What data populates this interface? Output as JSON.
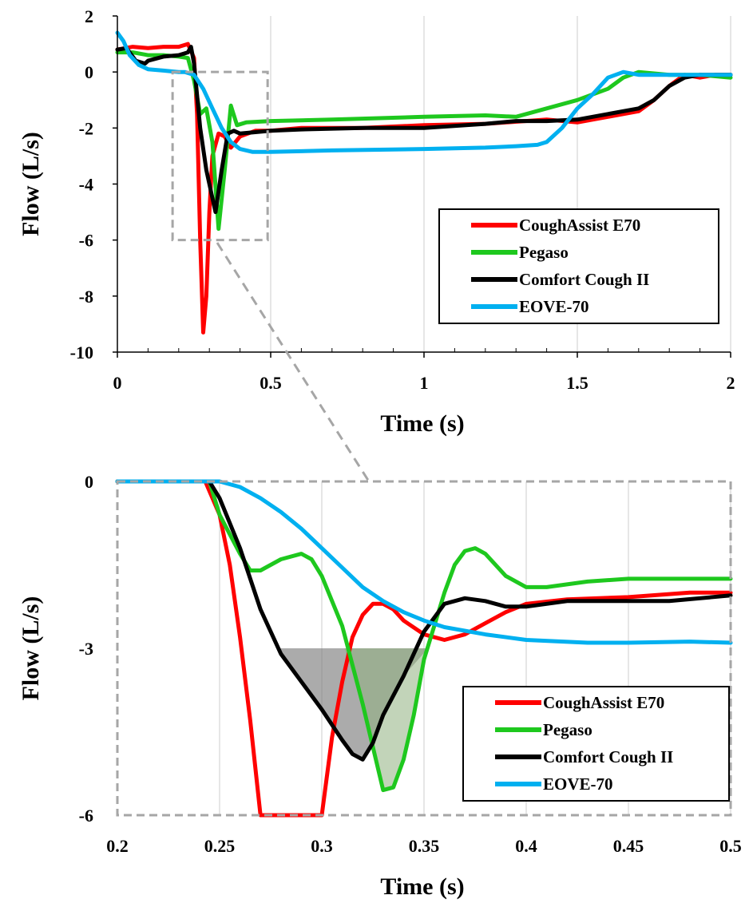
{
  "chart_data": [
    {
      "type": "line",
      "xlabel": "Time (s)",
      "ylabel": "Flow (L/s)",
      "xlim": [
        0,
        2
      ],
      "ylim": [
        -10,
        2
      ],
      "x_ticks": [
        "0",
        "0.5",
        "1",
        "1.5",
        "2"
      ],
      "y_ticks": [
        "2",
        "0",
        "-2",
        "-4",
        "-6",
        "-8",
        "-10"
      ],
      "grid": "vertical",
      "legend_position": "lower-right",
      "series": [
        {
          "name": "CoughAssist E70",
          "color": "#ff0000",
          "points": [
            [
              0,
              0.8
            ],
            [
              0.05,
              0.9
            ],
            [
              0.1,
              0.85
            ],
            [
              0.15,
              0.9
            ],
            [
              0.2,
              0.9
            ],
            [
              0.23,
              1.0
            ],
            [
              0.25,
              0.5
            ],
            [
              0.26,
              -1.5
            ],
            [
              0.27,
              -6
            ],
            [
              0.28,
              -9.3
            ],
            [
              0.29,
              -8
            ],
            [
              0.3,
              -5
            ],
            [
              0.31,
              -3.0
            ],
            [
              0.33,
              -2.2
            ],
            [
              0.35,
              -2.3
            ],
            [
              0.37,
              -2.7
            ],
            [
              0.4,
              -2.3
            ],
            [
              0.45,
              -2.1
            ],
            [
              0.5,
              -2.1
            ],
            [
              0.6,
              -2.0
            ],
            [
              0.8,
              -2.0
            ],
            [
              1.0,
              -1.9
            ],
            [
              1.2,
              -1.85
            ],
            [
              1.4,
              -1.7
            ],
            [
              1.5,
              -1.8
            ],
            [
              1.6,
              -1.6
            ],
            [
              1.7,
              -1.4
            ],
            [
              1.75,
              -1.0
            ],
            [
              1.8,
              -0.5
            ],
            [
              1.85,
              -0.1
            ],
            [
              1.9,
              -0.2
            ],
            [
              1.95,
              -0.1
            ],
            [
              2.0,
              -0.1
            ]
          ]
        },
        {
          "name": "Pegaso",
          "color": "#1ec81e",
          "points": [
            [
              0,
              0.7
            ],
            [
              0.05,
              0.7
            ],
            [
              0.1,
              0.6
            ],
            [
              0.15,
              0.6
            ],
            [
              0.2,
              0.55
            ],
            [
              0.23,
              0.5
            ],
            [
              0.25,
              -0.3
            ],
            [
              0.27,
              -1.5
            ],
            [
              0.29,
              -1.3
            ],
            [
              0.31,
              -2.5
            ],
            [
              0.33,
              -5.6
            ],
            [
              0.35,
              -3.5
            ],
            [
              0.37,
              -1.2
            ],
            [
              0.39,
              -1.9
            ],
            [
              0.42,
              -1.8
            ],
            [
              0.5,
              -1.75
            ],
            [
              0.7,
              -1.7
            ],
            [
              1.0,
              -1.6
            ],
            [
              1.2,
              -1.55
            ],
            [
              1.3,
              -1.6
            ],
            [
              1.4,
              -1.3
            ],
            [
              1.5,
              -1.0
            ],
            [
              1.6,
              -0.6
            ],
            [
              1.65,
              -0.2
            ],
            [
              1.7,
              0.0
            ],
            [
              1.8,
              -0.1
            ],
            [
              1.9,
              -0.1
            ],
            [
              2.0,
              -0.2
            ]
          ]
        },
        {
          "name": "Comfort Cough II",
          "color": "#000000",
          "points": [
            [
              0,
              0.8
            ],
            [
              0.03,
              0.85
            ],
            [
              0.06,
              0.4
            ],
            [
              0.09,
              0.3
            ],
            [
              0.1,
              0.4
            ],
            [
              0.15,
              0.55
            ],
            [
              0.2,
              0.6
            ],
            [
              0.23,
              0.7
            ],
            [
              0.24,
              0.9
            ],
            [
              0.25,
              0.3
            ],
            [
              0.27,
              -2
            ],
            [
              0.29,
              -3.5
            ],
            [
              0.31,
              -4.5
            ],
            [
              0.32,
              -5.0
            ],
            [
              0.34,
              -3.5
            ],
            [
              0.36,
              -2.2
            ],
            [
              0.38,
              -2.1
            ],
            [
              0.4,
              -2.2
            ],
            [
              0.5,
              -2.1
            ],
            [
              0.6,
              -2.05
            ],
            [
              0.8,
              -2.0
            ],
            [
              1.0,
              -2.0
            ],
            [
              1.2,
              -1.85
            ],
            [
              1.3,
              -1.75
            ],
            [
              1.4,
              -1.75
            ],
            [
              1.5,
              -1.7
            ],
            [
              1.6,
              -1.5
            ],
            [
              1.7,
              -1.3
            ],
            [
              1.75,
              -1.0
            ],
            [
              1.8,
              -0.5
            ],
            [
              1.85,
              -0.2
            ],
            [
              1.9,
              -0.1
            ],
            [
              2.0,
              -0.1
            ]
          ]
        },
        {
          "name": "EOVE-70",
          "color": "#00b0f0",
          "points": [
            [
              0,
              1.4
            ],
            [
              0.02,
              1.1
            ],
            [
              0.04,
              0.6
            ],
            [
              0.07,
              0.25
            ],
            [
              0.1,
              0.1
            ],
            [
              0.15,
              0.05
            ],
            [
              0.2,
              0.0
            ],
            [
              0.22,
              0.0
            ],
            [
              0.25,
              -0.1
            ],
            [
              0.28,
              -0.6
            ],
            [
              0.31,
              -1.3
            ],
            [
              0.34,
              -2.0
            ],
            [
              0.37,
              -2.5
            ],
            [
              0.4,
              -2.75
            ],
            [
              0.44,
              -2.85
            ],
            [
              0.5,
              -2.85
            ],
            [
              0.7,
              -2.8
            ],
            [
              1.0,
              -2.75
            ],
            [
              1.2,
              -2.7
            ],
            [
              1.3,
              -2.65
            ],
            [
              1.37,
              -2.6
            ],
            [
              1.4,
              -2.5
            ],
            [
              1.45,
              -2.0
            ],
            [
              1.5,
              -1.3
            ],
            [
              1.55,
              -0.8
            ],
            [
              1.6,
              -0.2
            ],
            [
              1.65,
              0.0
            ],
            [
              1.7,
              -0.1
            ],
            [
              1.8,
              -0.1
            ],
            [
              1.9,
              -0.1
            ],
            [
              2.0,
              -0.1
            ]
          ]
        }
      ]
    },
    {
      "type": "line",
      "xlabel": "Time (s)",
      "ylabel": "Flow (L/s)",
      "xlim": [
        0.2,
        0.5
      ],
      "ylim": [
        -6,
        0
      ],
      "x_ticks": [
        "0.2",
        "0.25",
        "0.3",
        "0.35",
        "0.4",
        "0.45",
        "0.5"
      ],
      "y_ticks": [
        "0",
        "-3",
        "-6"
      ],
      "grid": "vertical",
      "legend_position": "lower-right",
      "series": [
        {
          "name": "CoughAssist E70",
          "color": "#ff0000",
          "points": [
            [
              0.2,
              0
            ],
            [
              0.243,
              0
            ],
            [
              0.25,
              -0.6
            ],
            [
              0.255,
              -1.5
            ],
            [
              0.26,
              -2.8
            ],
            [
              0.265,
              -4.3
            ],
            [
              0.27,
              -6
            ],
            [
              0.3,
              -6
            ],
            [
              0.305,
              -4.6
            ],
            [
              0.31,
              -3.6
            ],
            [
              0.315,
              -2.8
            ],
            [
              0.32,
              -2.4
            ],
            [
              0.325,
              -2.2
            ],
            [
              0.33,
              -2.2
            ],
            [
              0.335,
              -2.3
            ],
            [
              0.34,
              -2.5
            ],
            [
              0.35,
              -2.75
            ],
            [
              0.36,
              -2.85
            ],
            [
              0.37,
              -2.75
            ],
            [
              0.38,
              -2.55
            ],
            [
              0.39,
              -2.35
            ],
            [
              0.4,
              -2.2
            ],
            [
              0.42,
              -2.12
            ],
            [
              0.45,
              -2.08
            ],
            [
              0.48,
              -2.0
            ],
            [
              0.5,
              -2.0
            ]
          ]
        },
        {
          "name": "Pegaso",
          "color": "#1ec81e",
          "points": [
            [
              0.2,
              0
            ],
            [
              0.245,
              0
            ],
            [
              0.25,
              -0.6
            ],
            [
              0.26,
              -1.3
            ],
            [
              0.265,
              -1.6
            ],
            [
              0.27,
              -1.6
            ],
            [
              0.28,
              -1.4
            ],
            [
              0.29,
              -1.3
            ],
            [
              0.295,
              -1.4
            ],
            [
              0.3,
              -1.7
            ],
            [
              0.31,
              -2.6
            ],
            [
              0.32,
              -4.0
            ],
            [
              0.33,
              -5.55
            ],
            [
              0.335,
              -5.5
            ],
            [
              0.34,
              -5.0
            ],
            [
              0.345,
              -4.2
            ],
            [
              0.35,
              -3.2
            ],
            [
              0.36,
              -2.0
            ],
            [
              0.365,
              -1.5
            ],
            [
              0.37,
              -1.25
            ],
            [
              0.375,
              -1.2
            ],
            [
              0.38,
              -1.3
            ],
            [
              0.39,
              -1.7
            ],
            [
              0.4,
              -1.9
            ],
            [
              0.41,
              -1.9
            ],
            [
              0.43,
              -1.8
            ],
            [
              0.45,
              -1.75
            ],
            [
              0.5,
              -1.75
            ]
          ]
        },
        {
          "name": "Comfort Cough II",
          "color": "#000000",
          "points": [
            [
              0.2,
              0
            ],
            [
              0.245,
              0
            ],
            [
              0.25,
              -0.3
            ],
            [
              0.26,
              -1.2
            ],
            [
              0.27,
              -2.3
            ],
            [
              0.28,
              -3.1
            ],
            [
              0.29,
              -3.6
            ],
            [
              0.3,
              -4.1
            ],
            [
              0.31,
              -4.65
            ],
            [
              0.315,
              -4.9
            ],
            [
              0.32,
              -5.0
            ],
            [
              0.325,
              -4.7
            ],
            [
              0.33,
              -4.2
            ],
            [
              0.34,
              -3.5
            ],
            [
              0.35,
              -2.7
            ],
            [
              0.36,
              -2.2
            ],
            [
              0.37,
              -2.1
            ],
            [
              0.38,
              -2.15
            ],
            [
              0.39,
              -2.25
            ],
            [
              0.4,
              -2.25
            ],
            [
              0.42,
              -2.15
            ],
            [
              0.45,
              -2.15
            ],
            [
              0.47,
              -2.15
            ],
            [
              0.5,
              -2.05
            ]
          ]
        },
        {
          "name": "EOVE-70",
          "color": "#00b0f0",
          "points": [
            [
              0.2,
              0
            ],
            [
              0.25,
              0
            ],
            [
              0.26,
              -0.1
            ],
            [
              0.27,
              -0.3
            ],
            [
              0.28,
              -0.55
            ],
            [
              0.29,
              -0.85
            ],
            [
              0.3,
              -1.2
            ],
            [
              0.31,
              -1.55
            ],
            [
              0.32,
              -1.9
            ],
            [
              0.33,
              -2.15
            ],
            [
              0.34,
              -2.35
            ],
            [
              0.35,
              -2.5
            ],
            [
              0.36,
              -2.62
            ],
            [
              0.38,
              -2.75
            ],
            [
              0.4,
              -2.85
            ],
            [
              0.43,
              -2.9
            ],
            [
              0.45,
              -2.9
            ],
            [
              0.48,
              -2.88
            ],
            [
              0.5,
              -2.9
            ]
          ]
        }
      ]
    }
  ],
  "colors": {
    "grid": "#d9d9d9",
    "zoom_box": "#a6a6a6",
    "shade_dark": "#737373",
    "shade_green": "#90b080"
  }
}
